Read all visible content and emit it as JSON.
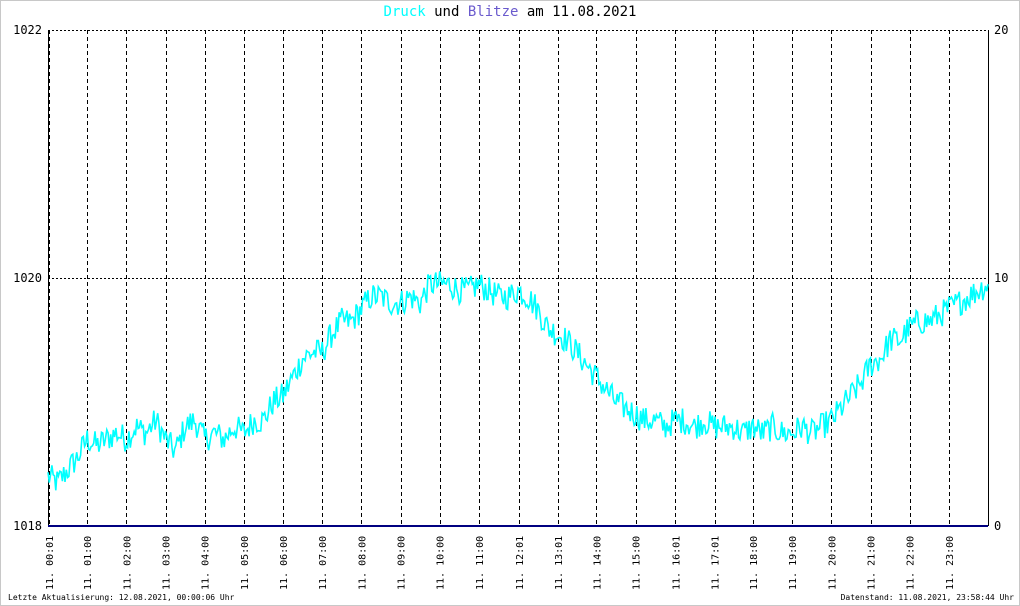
{
  "title": {
    "part1": "Druck",
    "part2": " und ",
    "part3": "Blitze",
    "part4": " am 11.08.2021"
  },
  "colors": {
    "pressure": "#00ffff",
    "lightning": "#6a5acd",
    "baseline": "#000080",
    "text": "#000000"
  },
  "footer": {
    "left": "Letzte Aktualisierung: 12.08.2021, 00:00:06 Uhr",
    "right": "Datenstand: 11.08.2021, 23:58:44 Uhr"
  },
  "chart_data": {
    "type": "line",
    "title": "Druck und Blitze am 11.08.2021",
    "xlabel": "",
    "ylabel": "",
    "y_left_range": [
      1018,
      1022
    ],
    "y_right_range": [
      0,
      20
    ],
    "y_left_ticks": [
      "1018",
      "1020",
      "1022"
    ],
    "y_right_ticks": [
      "0",
      "10",
      "20"
    ],
    "grid": true,
    "x_tick_labels": [
      "11. 00:01",
      "11. 01:00",
      "11. 02:00",
      "11. 03:00",
      "11. 04:00",
      "11. 05:00",
      "11. 06:00",
      "11. 07:00",
      "11. 08:00",
      "11. 09:00",
      "11. 10:00",
      "11. 11:00",
      "11. 12:01",
      "11. 13:01",
      "11. 14:00",
      "11. 15:00",
      "11. 16:01",
      "11. 17:01",
      "11. 18:00",
      "11. 19:00",
      "11. 20:00",
      "11. 21:00",
      "11. 22:00",
      "11. 23:00"
    ],
    "x_tick_hours": [
      0.02,
      1.0,
      2.0,
      3.0,
      4.0,
      5.0,
      6.0,
      7.0,
      8.0,
      9.0,
      10.0,
      11.0,
      12.02,
      13.02,
      14.0,
      15.0,
      16.02,
      17.02,
      18.0,
      19.0,
      20.0,
      21.0,
      22.0,
      23.0
    ],
    "series": [
      {
        "name": "Druck",
        "axis": "left",
        "color": "#00ffff",
        "x_hours": [
          0.0,
          0.25,
          0.5,
          0.75,
          1.0,
          1.25,
          1.5,
          1.75,
          2.0,
          2.25,
          2.5,
          2.75,
          3.0,
          3.25,
          3.5,
          3.75,
          4.0,
          4.25,
          4.5,
          4.75,
          5.0,
          5.25,
          5.5,
          5.75,
          6.0,
          6.25,
          6.5,
          6.75,
          7.0,
          7.25,
          7.5,
          7.75,
          8.0,
          8.25,
          8.5,
          8.75,
          9.0,
          9.25,
          9.5,
          9.75,
          10.0,
          10.25,
          10.5,
          10.75,
          11.0,
          11.25,
          11.5,
          11.75,
          12.0,
          12.25,
          12.5,
          12.75,
          13.0,
          13.25,
          13.5,
          13.75,
          14.0,
          14.25,
          14.5,
          14.75,
          15.0,
          15.25,
          15.5,
          15.75,
          16.0,
          16.25,
          16.5,
          16.75,
          17.0,
          17.25,
          17.5,
          17.75,
          18.0,
          18.25,
          18.5,
          18.75,
          19.0,
          19.25,
          19.5,
          19.75,
          20.0,
          20.25,
          20.5,
          20.75,
          21.0,
          21.25,
          21.5,
          21.75,
          22.0,
          22.25,
          22.5,
          22.75,
          23.0,
          23.25,
          23.5,
          23.75,
          23.98
        ],
        "values": [
          1018.4,
          1018.35,
          1018.45,
          1018.55,
          1018.7,
          1018.65,
          1018.7,
          1018.75,
          1018.7,
          1018.8,
          1018.75,
          1018.85,
          1018.7,
          1018.6,
          1018.8,
          1018.85,
          1018.7,
          1018.75,
          1018.7,
          1018.8,
          1018.75,
          1018.85,
          1018.85,
          1019.0,
          1019.05,
          1019.2,
          1019.35,
          1019.4,
          1019.4,
          1019.55,
          1019.65,
          1019.65,
          1019.75,
          1019.85,
          1019.85,
          1019.8,
          1019.8,
          1019.85,
          1019.8,
          1019.95,
          1019.95,
          1019.95,
          1019.9,
          1019.9,
          1019.95,
          1019.9,
          1019.85,
          1019.85,
          1019.9,
          1019.85,
          1019.75,
          1019.6,
          1019.55,
          1019.5,
          1019.4,
          1019.3,
          1019.2,
          1019.1,
          1019.0,
          1018.95,
          1018.9,
          1018.85,
          1018.85,
          1018.8,
          1018.85,
          1018.85,
          1018.8,
          1018.85,
          1018.8,
          1018.8,
          1018.8,
          1018.75,
          1018.8,
          1018.75,
          1018.8,
          1018.75,
          1018.75,
          1018.8,
          1018.75,
          1018.8,
          1018.85,
          1018.95,
          1019.05,
          1019.15,
          1019.3,
          1019.35,
          1019.5,
          1019.5,
          1019.6,
          1019.65,
          1019.65,
          1019.7,
          1019.75,
          1019.8,
          1019.85,
          1019.9,
          1019.95
        ]
      },
      {
        "name": "Blitze",
        "axis": "right",
        "color": "#000080",
        "x_hours": [
          0,
          24
        ],
        "values": [
          0,
          0
        ]
      }
    ]
  }
}
